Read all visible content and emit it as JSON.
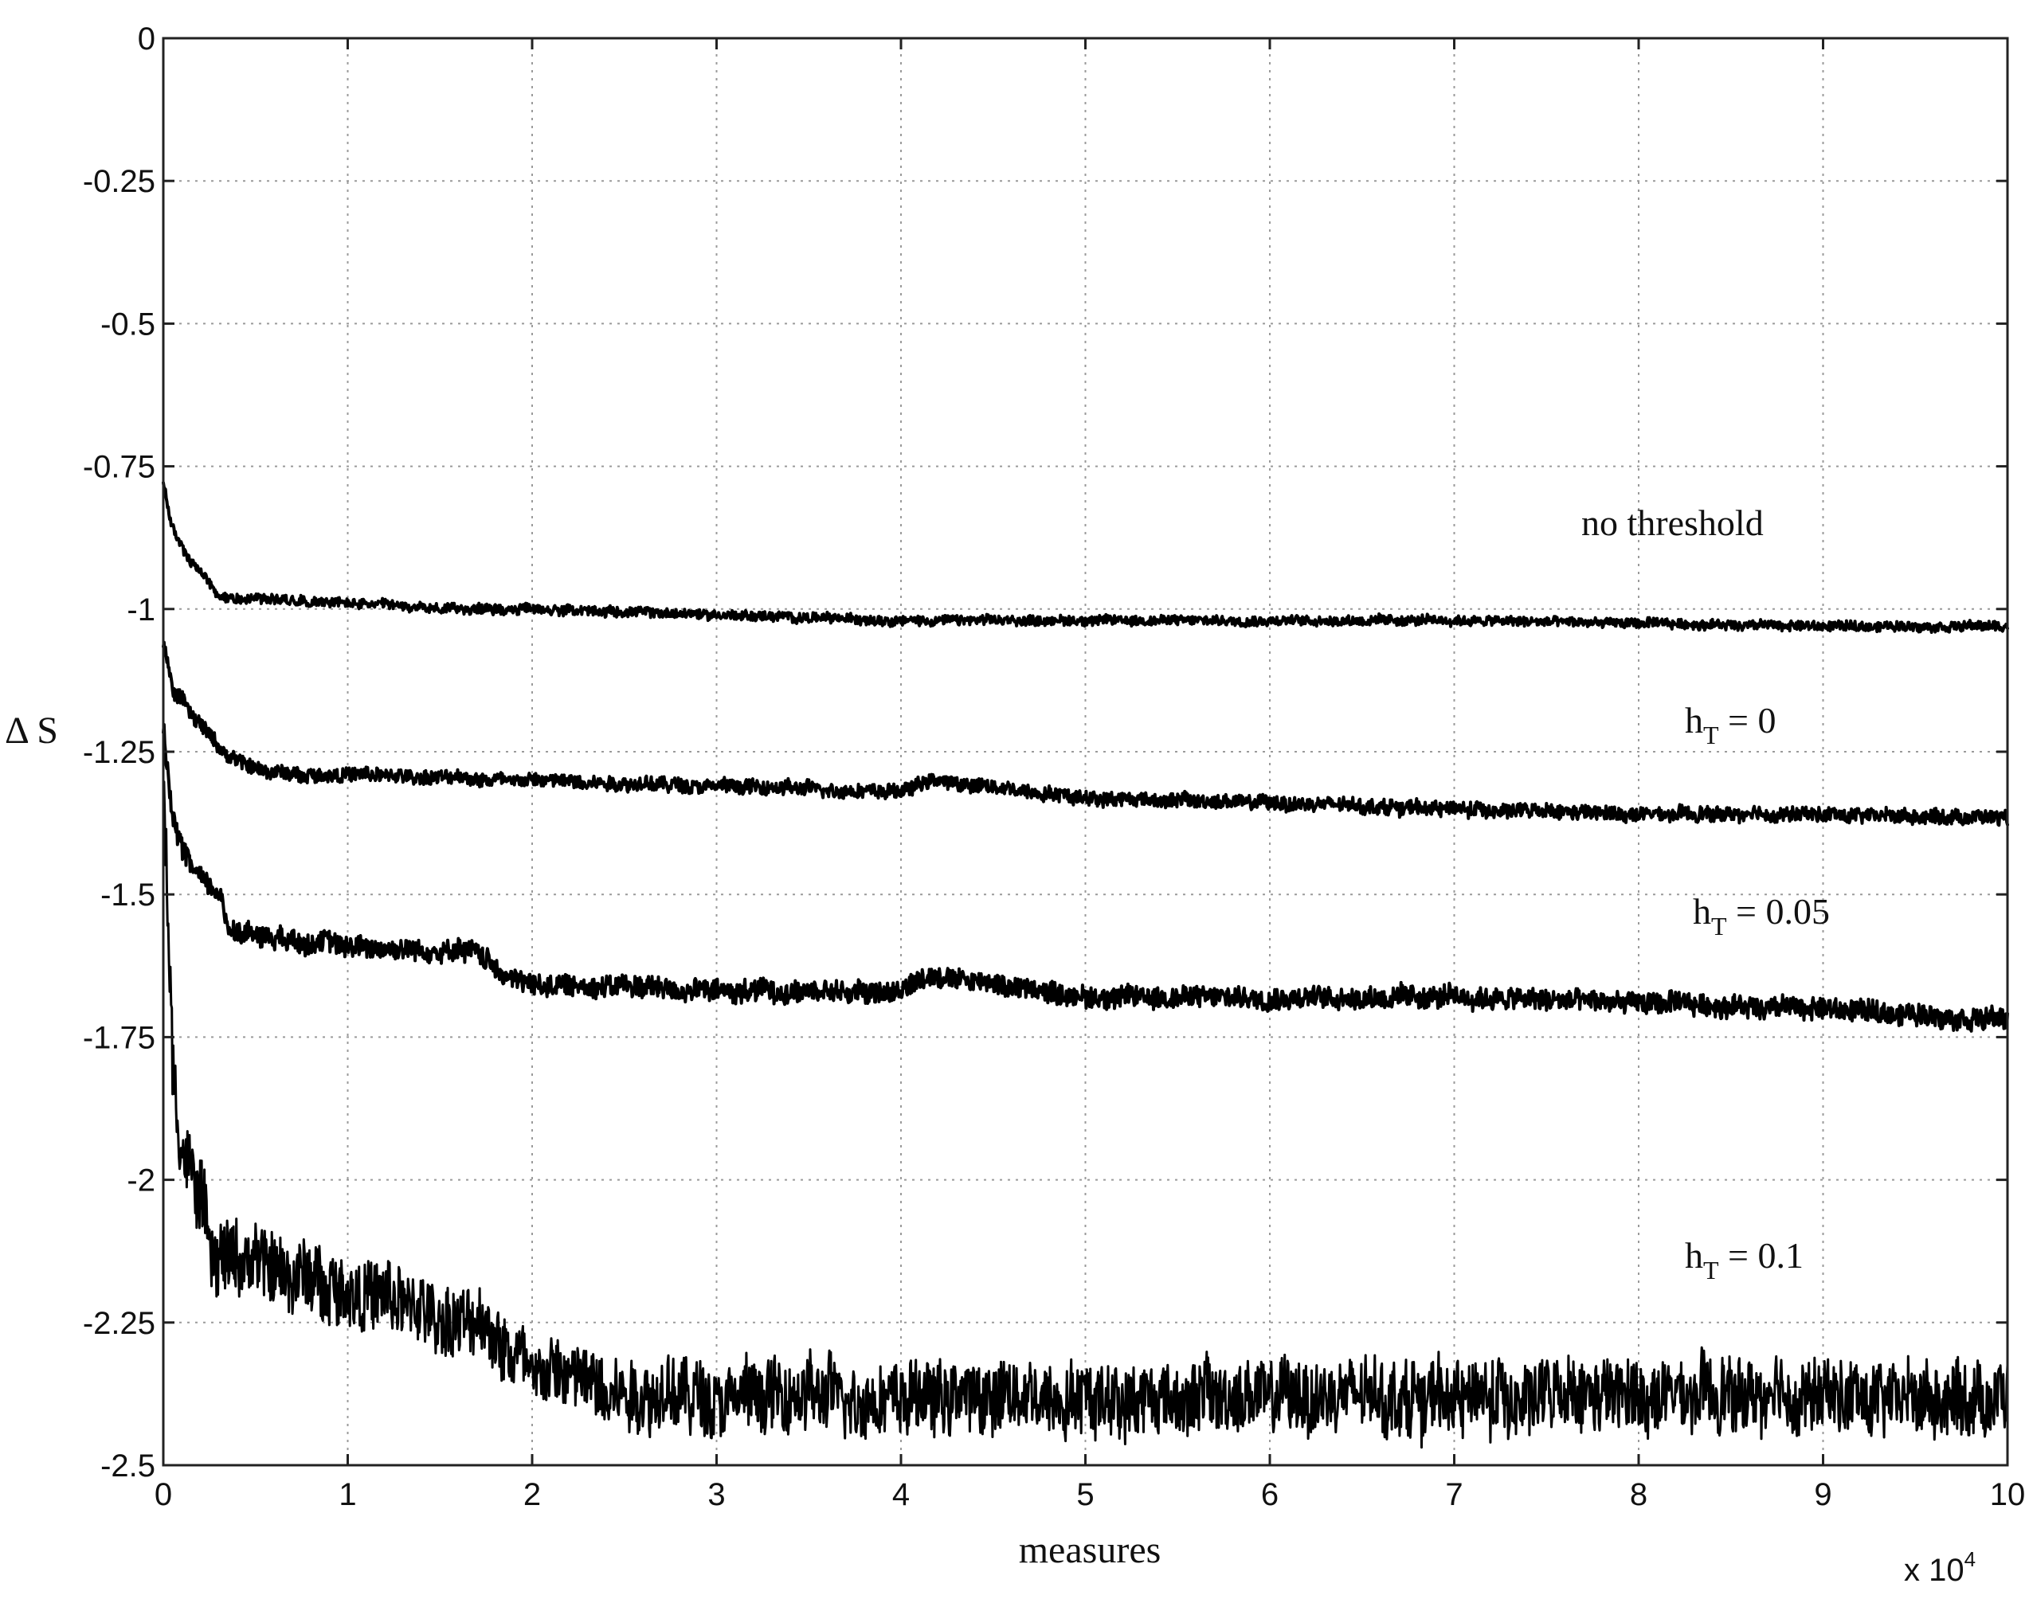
{
  "chart_data": {
    "type": "line",
    "xlabel": "measures",
    "ylabel": "Δ S",
    "x_multiplier_label": "x 10",
    "x_multiplier_exponent": "4",
    "x_multiplier": 10000,
    "xlim": [
      0,
      100000
    ],
    "ylim": [
      -2.5,
      0
    ],
    "grid": true,
    "x_ticks": [
      0,
      10000,
      20000,
      30000,
      40000,
      50000,
      60000,
      70000,
      80000,
      90000,
      100000
    ],
    "x_tick_labels": [
      "0",
      "1",
      "2",
      "3",
      "4",
      "5",
      "6",
      "7",
      "8",
      "9",
      "10"
    ],
    "y_ticks": [
      0,
      -0.25,
      -0.5,
      -0.75,
      -1,
      -1.25,
      -1.5,
      -1.75,
      -2,
      -2.25,
      -2.5
    ],
    "y_tick_labels": [
      "0",
      "-0.25",
      "-0.5",
      "-0.75",
      "-1",
      "-1.25",
      "-1.5",
      "-1.75",
      "-2",
      "-2.25",
      "-2.5"
    ],
    "annotations": [
      {
        "text": "no threshold",
        "main": "no threshold",
        "subscript": ""
      },
      {
        "text": "hT = 0",
        "main": "h",
        "subscript": "T",
        "rest": " = 0"
      },
      {
        "text": "hT = 0.05",
        "main": "h",
        "subscript": "T",
        "rest": " = 0.05"
      },
      {
        "text": "hT = 0.1",
        "main": "h",
        "subscript": "T",
        "rest": " = 0.1"
      }
    ],
    "series": [
      {
        "noise": 0.008,
        "x": [
          0,
          500,
          1500,
          2200,
          3000,
          5000,
          10000,
          15000,
          20000,
          30000,
          40000,
          50000,
          60000,
          70000,
          80000,
          90000,
          100000
        ],
        "y": [
          -0.78,
          -0.86,
          -0.92,
          -0.94,
          -0.98,
          -0.98,
          -0.99,
          -1.0,
          -1.0,
          -1.01,
          -1.02,
          -1.02,
          -1.02,
          -1.02,
          -1.025,
          -1.03,
          -1.03
        ]
      },
      {
        "noise": 0.012,
        "x": [
          0,
          500,
          1500,
          2500,
          3500,
          5000,
          7000,
          10000,
          20000,
          30000,
          40000,
          41500,
          50000,
          60000,
          70000,
          80000,
          90000,
          100000
        ],
        "y": [
          -1.06,
          -1.14,
          -1.18,
          -1.22,
          -1.26,
          -1.28,
          -1.29,
          -1.29,
          -1.3,
          -1.31,
          -1.32,
          -1.3,
          -1.33,
          -1.34,
          -1.35,
          -1.36,
          -1.36,
          -1.365
        ]
      },
      {
        "noise": 0.018,
        "x": [
          0,
          500,
          1500,
          3000,
          3600,
          5000,
          10000,
          15000,
          17000,
          18500,
          20000,
          25000,
          30000,
          40000,
          41500,
          50000,
          60000,
          70000,
          80000,
          90000,
          100000
        ],
        "y": [
          -1.2,
          -1.38,
          -1.45,
          -1.5,
          -1.56,
          -1.57,
          -1.59,
          -1.6,
          -1.6,
          -1.64,
          -1.66,
          -1.66,
          -1.67,
          -1.67,
          -1.64,
          -1.68,
          -1.68,
          -1.68,
          -1.69,
          -1.7,
          -1.72
        ]
      },
      {
        "noise": 0.06,
        "x": [
          0,
          500,
          1000,
          2000,
          2500,
          5000,
          10000,
          15000,
          18000,
          20000,
          25000,
          30000,
          40000,
          50000,
          60000,
          70000,
          80000,
          90000,
          100000
        ],
        "y": [
          -1.3,
          -1.8,
          -1.95,
          -2.02,
          -2.12,
          -2.15,
          -2.19,
          -2.24,
          -2.27,
          -2.33,
          -2.37,
          -2.38,
          -2.38,
          -2.38,
          -2.38,
          -2.38,
          -2.38,
          -2.38,
          -2.38
        ]
      }
    ]
  }
}
